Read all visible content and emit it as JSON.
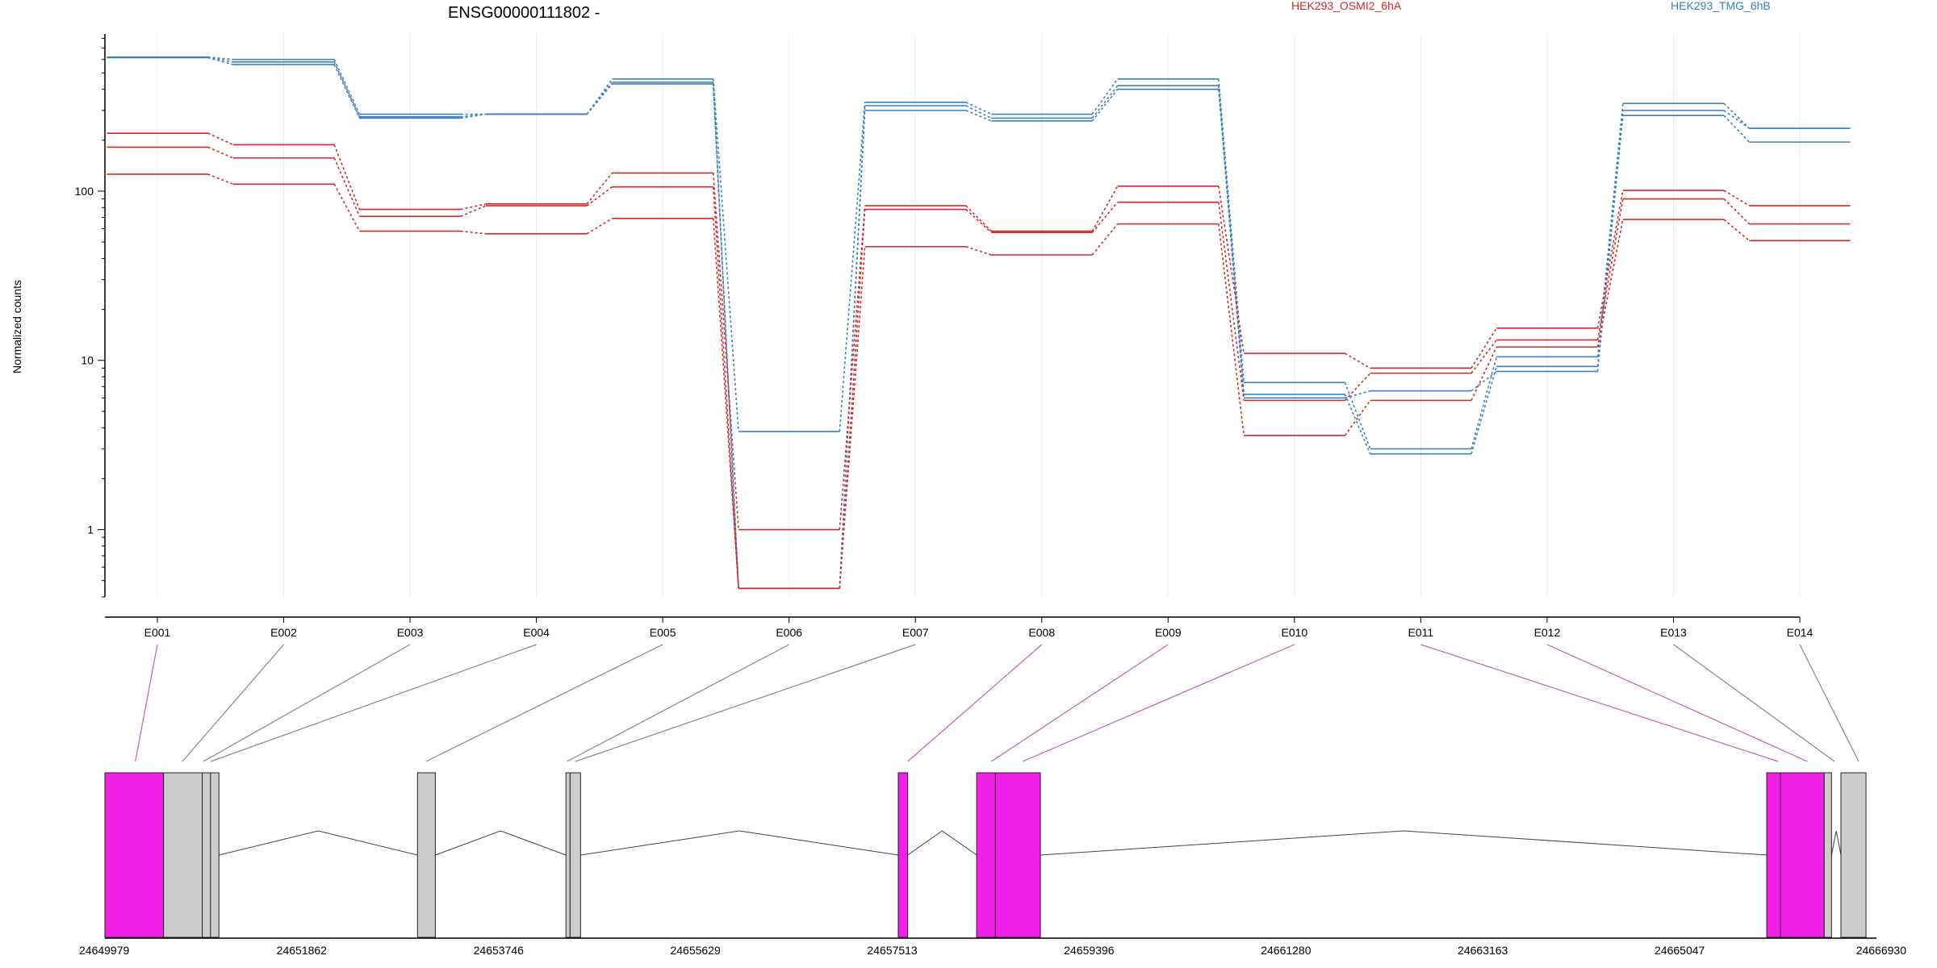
{
  "chart_data": [
    {
      "type": "line",
      "title": "ENSG00000111802 -",
      "xlabel": "",
      "ylabel": "Normalized counts",
      "y_scale": "log10",
      "ylim": [
        0.4,
        850
      ],
      "y_ticks": [
        1,
        10,
        100
      ],
      "categories": [
        "E001",
        "E002",
        "E003",
        "E004",
        "E005",
        "E006",
        "E007",
        "E008",
        "E009",
        "E010",
        "E011",
        "E012",
        "E013",
        "E014"
      ],
      "grid": true,
      "legend": [
        {
          "label": "HEK293_OSMI2_6hA",
          "color": "#d62728"
        },
        {
          "label": "HEK293_TMG_6hB",
          "color": "#3a7fc1"
        }
      ],
      "series": [
        {
          "group": "HEK293_TMG_6hB",
          "color": "#3a7fc1",
          "values": [
            620,
            600,
            285,
            285,
            460,
            3.8,
            335,
            285,
            460,
            7.4,
            3.0,
            10.5,
            330,
            235
          ]
        },
        {
          "group": "HEK293_TMG_6hB",
          "color": "#3a7fc1",
          "values": [
            620,
            580,
            275,
            285,
            440,
            0.45,
            320,
            270,
            420,
            6.3,
            2.8,
            9.2,
            300,
            235
          ]
        },
        {
          "group": "HEK293_TMG_6hB",
          "color": "#3a7fc1",
          "values": [
            615,
            560,
            270,
            285,
            430,
            0.45,
            300,
            260,
            400,
            6.0,
            6.6,
            8.6,
            280,
            195
          ]
        },
        {
          "group": "HEK293_OSMI2_6hA",
          "color": "#d62728",
          "values": [
            220,
            188,
            78,
            84,
            128,
            1.0,
            82,
            58,
            107,
            11.0,
            9.0,
            15.5,
            101,
            82
          ]
        },
        {
          "group": "HEK293_OSMI2_6hA",
          "color": "#d62728",
          "values": [
            182,
            157,
            71,
            82,
            106,
            0.45,
            78,
            57,
            86,
            5.8,
            8.4,
            13.2,
            90,
            64
          ]
        },
        {
          "group": "HEK293_OSMI2_6hA",
          "color": "#d62728",
          "values": [
            126,
            110,
            58,
            56,
            69,
            0.45,
            47,
            42,
            64,
            3.6,
            5.8,
            12.0,
            68,
            51
          ]
        }
      ]
    },
    {
      "type": "gene-model",
      "x_ticks": [
        "24649979",
        "24651862",
        "24653746",
        "24655629",
        "24657513",
        "24659396",
        "24661280",
        "24663163",
        "24665047",
        "24666930"
      ],
      "x_range": [
        24649979,
        24666930
      ],
      "exon_colors": {
        "significant": "#f020e8",
        "default": "#cccccc"
      },
      "exon_links": [
        {
          "exon": "E001",
          "target": 24650270,
          "color": "#c060c0"
        },
        {
          "exon": "E002",
          "target": 24650720,
          "color": "#888888"
        },
        {
          "exon": "E003",
          "target": 24650920,
          "color": "#888888"
        },
        {
          "exon": "E004",
          "target": 24650990,
          "color": "#888888"
        },
        {
          "exon": "E005",
          "target": 24653050,
          "color": "#888888"
        },
        {
          "exon": "E006",
          "target": 24654400,
          "color": "#888888"
        },
        {
          "exon": "E007",
          "target": 24654480,
          "color": "#888888"
        },
        {
          "exon": "E008",
          "target": 24657660,
          "color": "#c060c0"
        },
        {
          "exon": "E009",
          "target": 24658460,
          "color": "#c060c0"
        },
        {
          "exon": "E010",
          "target": 24658760,
          "color": "#c060c0"
        },
        {
          "exon": "E011",
          "target": 24665990,
          "color": "#c060c0"
        },
        {
          "exon": "E012",
          "target": 24666270,
          "color": "#c060c0"
        },
        {
          "exon": "E013",
          "target": 24666530,
          "color": "#888888"
        },
        {
          "exon": "E014",
          "target": 24666760,
          "color": "#888888"
        }
      ],
      "exons": [
        {
          "start": 24649979,
          "end": 24650540,
          "kind": "significant"
        },
        {
          "start": 24650540,
          "end": 24650910,
          "kind": "default"
        },
        {
          "start": 24650910,
          "end": 24650990,
          "kind": "default"
        },
        {
          "start": 24650990,
          "end": 24651070,
          "kind": "default"
        },
        {
          "start": 24652970,
          "end": 24653140,
          "kind": "default"
        },
        {
          "start": 24654390,
          "end": 24654430,
          "kind": "default"
        },
        {
          "start": 24654430,
          "end": 24654530,
          "kind": "default"
        },
        {
          "start": 24657570,
          "end": 24657660,
          "kind": "significant"
        },
        {
          "start": 24658320,
          "end": 24658500,
          "kind": "significant"
        },
        {
          "start": 24658500,
          "end": 24658930,
          "kind": "significant"
        },
        {
          "start": 24665880,
          "end": 24666010,
          "kind": "significant"
        },
        {
          "start": 24666010,
          "end": 24666430,
          "kind": "significant"
        },
        {
          "start": 24666430,
          "end": 24666500,
          "kind": "default"
        },
        {
          "start": 24666590,
          "end": 24666830,
          "kind": "default"
        }
      ],
      "introns": [
        {
          "from": 24651070,
          "to": 24652970
        },
        {
          "from": 24653140,
          "to": 24654390
        },
        {
          "from": 24654530,
          "to": 24657570
        },
        {
          "from": 24657660,
          "to": 24658320
        },
        {
          "from": 24658930,
          "to": 24665880
        },
        {
          "from": 24666500,
          "to": 24666590
        }
      ]
    }
  ]
}
